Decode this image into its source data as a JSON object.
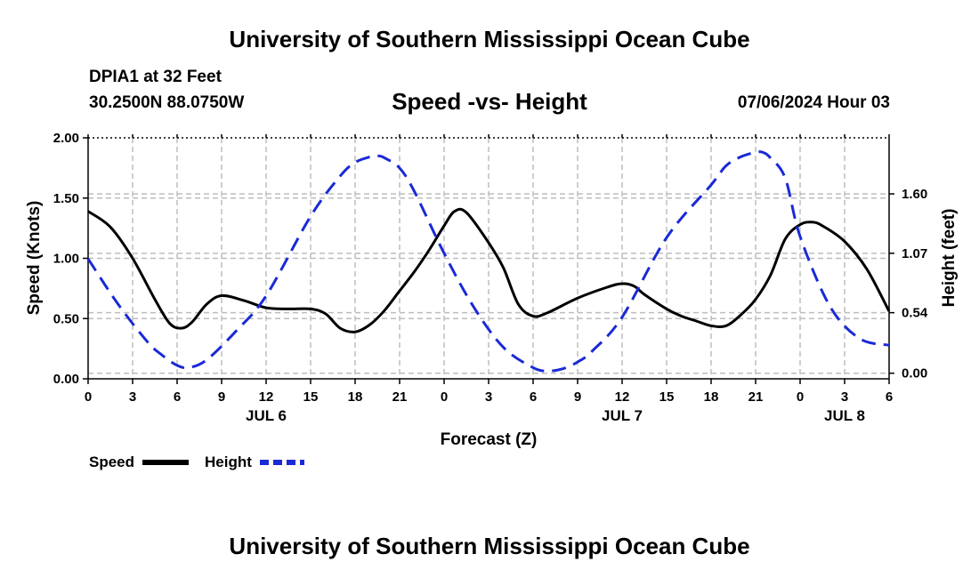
{
  "page": {
    "title": "University of Southern Mississippi Ocean Cube",
    "footer_title": "University of Southern Mississippi Ocean Cube",
    "station": "DPIA1 at 32 Feet",
    "coordinates": "30.2500N  88.0750W",
    "chart_title": "Speed -vs- Height",
    "issued": "07/06/2024 Hour 03"
  },
  "colors": {
    "speed": "#000000",
    "height": "#1a2ad6",
    "grid": "#bdbdbd"
  },
  "chart_data": {
    "type": "line",
    "title": "Speed -vs- Height",
    "xlabel": "Forecast (Z)",
    "ylabel": "Speed (Knots)",
    "y2label": "Height (feet)",
    "x_range_hours": [
      0,
      54
    ],
    "x_tick_hours": [
      0,
      3,
      6,
      9,
      12,
      15,
      18,
      21,
      24,
      27,
      30,
      33,
      36,
      39,
      42,
      45,
      48,
      51,
      54
    ],
    "x_tick_labels": [
      "0",
      "3",
      "6",
      "9",
      "12",
      "15",
      "18",
      "21",
      "0",
      "3",
      "6",
      "9",
      "12",
      "15",
      "18",
      "21",
      "0",
      "3",
      "6"
    ],
    "x_day_labels": [
      {
        "hour": 12,
        "label": "JUL 6"
      },
      {
        "hour": 36,
        "label": "JUL 7"
      },
      {
        "hour": 51,
        "label": "JUL 8"
      }
    ],
    "ylim": [
      0,
      2.0
    ],
    "y_ticks": [
      0,
      0.5,
      1.0,
      1.5,
      2.0
    ],
    "y_tick_labels": [
      "0.00",
      "0.50",
      "1.00",
      "1.50",
      "2.00"
    ],
    "y2lim": [
      -0.05,
      2.1
    ],
    "y2_ticks": [
      0.0,
      0.54,
      1.07,
      1.6
    ],
    "y2_tick_labels": [
      "0.00",
      "0.54",
      "1.07",
      "1.60"
    ],
    "series": [
      {
        "name": "Speed",
        "axis": "left",
        "style": "solid",
        "x": [
          0,
          1.5,
          3,
          4.5,
          5.5,
          6.3,
          7,
          8,
          9,
          10.5,
          12,
          13.5,
          15,
          16,
          17,
          18,
          19,
          20,
          21,
          22,
          23,
          24,
          24.7,
          25.5,
          27,
          28,
          29,
          30,
          31,
          33,
          35,
          36,
          36.8,
          37.5,
          39,
          40,
          41,
          42,
          43,
          44,
          45,
          46,
          47,
          48,
          48.8,
          49.5,
          51,
          52.5,
          54
        ],
        "values": [
          1.39,
          1.26,
          1.0,
          0.66,
          0.46,
          0.42,
          0.47,
          0.62,
          0.69,
          0.65,
          0.59,
          0.58,
          0.58,
          0.54,
          0.42,
          0.39,
          0.45,
          0.57,
          0.73,
          0.89,
          1.07,
          1.27,
          1.39,
          1.38,
          1.13,
          0.92,
          0.62,
          0.52,
          0.55,
          0.67,
          0.76,
          0.79,
          0.77,
          0.7,
          0.58,
          0.52,
          0.48,
          0.44,
          0.44,
          0.53,
          0.66,
          0.86,
          1.16,
          1.28,
          1.3,
          1.27,
          1.14,
          0.91,
          0.56
        ]
      },
      {
        "name": "Height",
        "axis": "right",
        "style": "dashed",
        "x": [
          0,
          2,
          4,
          5,
          6,
          6.8,
          8,
          10,
          12,
          15,
          17,
          18,
          19,
          19.5,
          20,
          21,
          22,
          24,
          26,
          28,
          30,
          31,
          32,
          33,
          34,
          36,
          39,
          42,
          43,
          44,
          45,
          45.5,
          46,
          47,
          48,
          50,
          52,
          54
        ],
        "values": [
          1.02,
          0.62,
          0.28,
          0.16,
          0.07,
          0.05,
          0.12,
          0.38,
          0.69,
          1.4,
          1.76,
          1.88,
          1.93,
          1.94,
          1.92,
          1.83,
          1.62,
          1.07,
          0.59,
          0.23,
          0.05,
          0.02,
          0.04,
          0.1,
          0.2,
          0.5,
          1.21,
          1.68,
          1.85,
          1.93,
          1.97,
          1.97,
          1.92,
          1.74,
          1.22,
          0.6,
          0.31,
          0.25
        ]
      }
    ],
    "legend": [
      {
        "label": "Speed",
        "style": "solid"
      },
      {
        "label": "Height",
        "style": "dashed"
      }
    ],
    "legend_position": "bottom-left",
    "grid": true
  }
}
